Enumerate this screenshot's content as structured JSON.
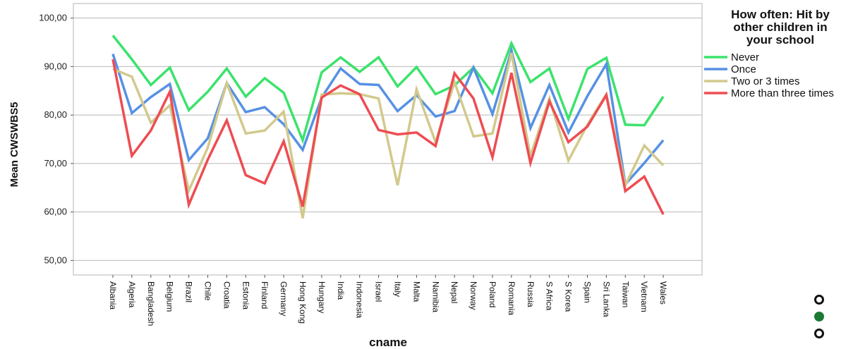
{
  "chart_data": {
    "type": "line",
    "xlabel": "cname",
    "ylabel": "Mean CWSWBS5",
    "ylim": [
      47,
      103
    ],
    "yticks": [
      "50,00",
      "60,00",
      "70,00",
      "80,00",
      "90,00",
      "100,00"
    ],
    "grid": "horizontal",
    "legend": {
      "title_lines": [
        "How often: Hit by",
        "other children in",
        "your school"
      ],
      "placement": "top-right"
    },
    "categories": [
      "Albania",
      "Algeria",
      "Bangladesh",
      "Belgium",
      "Brazil",
      "Chile",
      "Croatia",
      "Estonia",
      "Finland",
      "Germany",
      "Hong Kong",
      "Hungary",
      "India",
      "Indonesia",
      "Israel",
      "Italy",
      "Malta",
      "Namibia",
      "Nepal",
      "Norway",
      "Poland",
      "Romania",
      "Russia",
      "S Africa",
      "S Korea",
      "Spain",
      "Sri Lanka",
      "Taiwan",
      "Vietnam",
      "Wales"
    ],
    "series": [
      {
        "name": "Never",
        "color": "#3be36b",
        "values": [
          96.4,
          91.5,
          86.2,
          89.8,
          81.0,
          84.8,
          89.6,
          83.8,
          87.6,
          84.6,
          74.8,
          88.8,
          91.9,
          88.9,
          91.9,
          85.9,
          89.9,
          84.3,
          86.1,
          89.8,
          84.5,
          94.8,
          86.8,
          89.6,
          79.2,
          89.5,
          91.8,
          78.0,
          77.9,
          83.8
        ]
      },
      {
        "name": "Once",
        "color": "#5691e4",
        "values": [
          92.6,
          80.4,
          83.7,
          86.4,
          70.7,
          75.2,
          86.6,
          80.6,
          81.6,
          78.1,
          72.8,
          83.6,
          89.6,
          86.4,
          86.2,
          80.8,
          84.1,
          79.7,
          80.8,
          89.8,
          80.2,
          93.3,
          77.3,
          86.2,
          76.4,
          83.9,
          90.5,
          65.7,
          70.1,
          74.8
        ]
      },
      {
        "name": "Two or 3 times",
        "color": "#d2c98c",
        "values": [
          89.5,
          87.9,
          78.4,
          82.0,
          64.4,
          73.3,
          86.6,
          76.2,
          76.8,
          80.7,
          58.7,
          84.2,
          84.5,
          84.3,
          83.4,
          65.5,
          85.3,
          74.4,
          86.8,
          75.6,
          76.2,
          92.8,
          71.5,
          83.4,
          70.6,
          78.0,
          84.3,
          65.5,
          73.7,
          69.6
        ]
      },
      {
        "name": "More than three times",
        "color": "#ee4c52",
        "values": [
          91.5,
          71.6,
          76.8,
          84.8,
          61.5,
          70.8,
          78.9,
          67.6,
          65.9,
          74.6,
          61.1,
          83.6,
          86.1,
          84.3,
          76.9,
          76.0,
          76.4,
          73.6,
          88.6,
          83.4,
          71.3,
          88.7,
          70.1,
          82.8,
          74.4,
          77.6,
          84.1,
          64.3,
          67.3,
          59.5
        ]
      }
    ]
  }
}
